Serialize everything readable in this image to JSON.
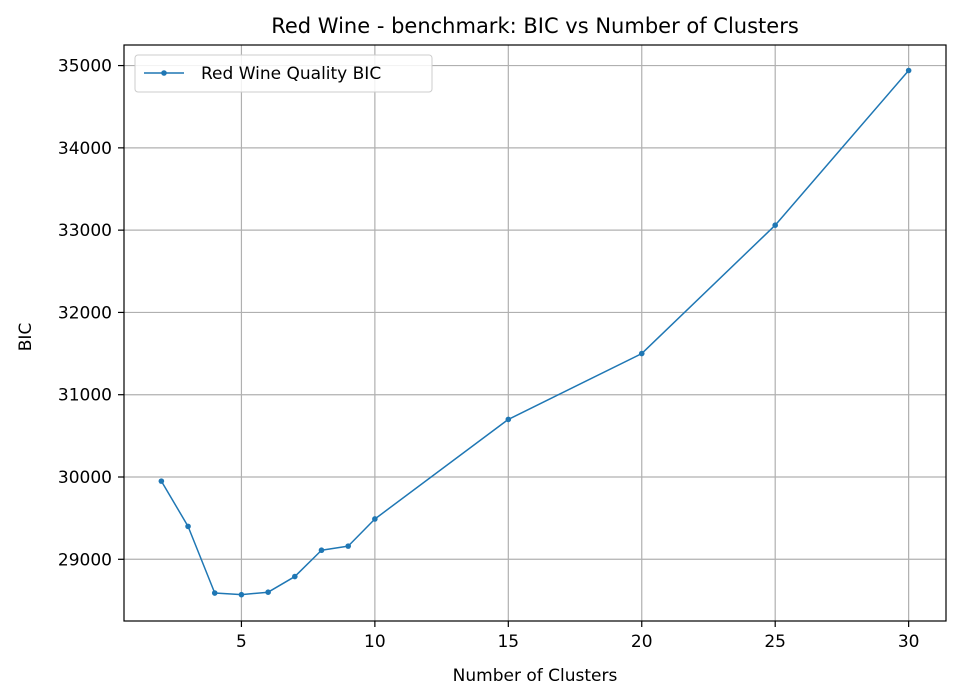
{
  "chart_data": {
    "type": "line",
    "title": "Red Wine - benchmark: BIC vs Number of Clusters",
    "xlabel": "Number of Clusters",
    "ylabel": "BIC",
    "xlim": [
      0.6,
      31.4
    ],
    "ylim": [
      28250,
      35250
    ],
    "xticks": [
      5,
      10,
      15,
      20,
      25,
      30
    ],
    "yticks": [
      29000,
      30000,
      31000,
      32000,
      33000,
      34000,
      35000
    ],
    "grid": true,
    "legend_position": "top-left",
    "series": [
      {
        "name": "Red Wine Quality BIC",
        "color": "#1f77b4",
        "marker": "circle",
        "points": [
          {
            "x": 2,
            "y": 29950
          },
          {
            "x": 3,
            "y": 29400
          },
          {
            "x": 4,
            "y": 28590
          },
          {
            "x": 5,
            "y": 28570
          },
          {
            "x": 6,
            "y": 28600
          },
          {
            "x": 7,
            "y": 28790
          },
          {
            "x": 8,
            "y": 29110
          },
          {
            "x": 9,
            "y": 29160
          },
          {
            "x": 10,
            "y": 29490
          },
          {
            "x": 15,
            "y": 30700
          },
          {
            "x": 20,
            "y": 31500
          },
          {
            "x": 25,
            "y": 33060
          },
          {
            "x": 30,
            "y": 34940
          }
        ]
      }
    ]
  }
}
